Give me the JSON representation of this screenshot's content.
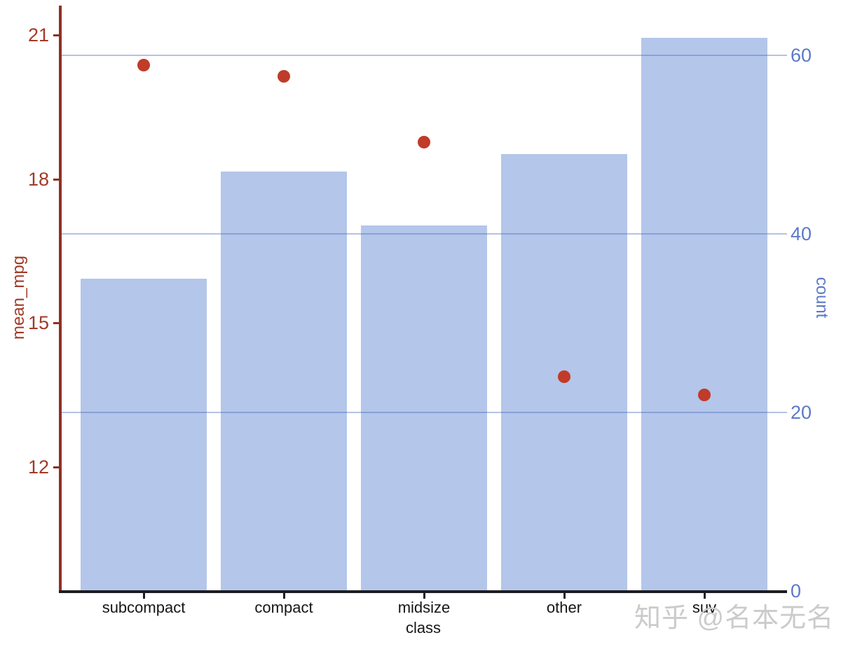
{
  "watermark": {
    "text": "知乎 @名本无名",
    "color": "#cbcbcb"
  },
  "chart_data": {
    "type": "bar",
    "subtype": "dual-axis bar + scatter",
    "title": "",
    "xlabel": "class",
    "categories": [
      "subcompact",
      "compact",
      "midsize",
      "other",
      "suv"
    ],
    "series": [
      {
        "name": "count",
        "type": "bar",
        "axis": "right",
        "values": [
          35,
          47,
          41,
          49,
          62
        ]
      },
      {
        "name": "mean_mpg",
        "type": "scatter",
        "axis": "left",
        "values": [
          20.37,
          20.13,
          18.76,
          13.88,
          13.5
        ]
      }
    ],
    "left_axis": {
      "label": "mean_mpg",
      "ticks": [
        21,
        18,
        15,
        12
      ],
      "ylim": [
        9.42,
        21.61
      ],
      "color": "#a23a28"
    },
    "right_axis": {
      "label": "count",
      "ticks": [
        60,
        40,
        20,
        0
      ],
      "ylim": [
        0,
        65.6
      ],
      "color": "#5b7ac8"
    },
    "grid": {
      "horizontal_at_right_axis": [
        20,
        40,
        60
      ],
      "vertical": false
    },
    "legend": "none",
    "colors": {
      "bar_fill": "#b4c6e9",
      "point_fill": "#c03b29",
      "left_axis_line": "#8e3124",
      "bottom_axis_line": "#1d1d22",
      "gridline": "rgba(70,105,185,0.40)",
      "background": "#ffffff"
    }
  }
}
